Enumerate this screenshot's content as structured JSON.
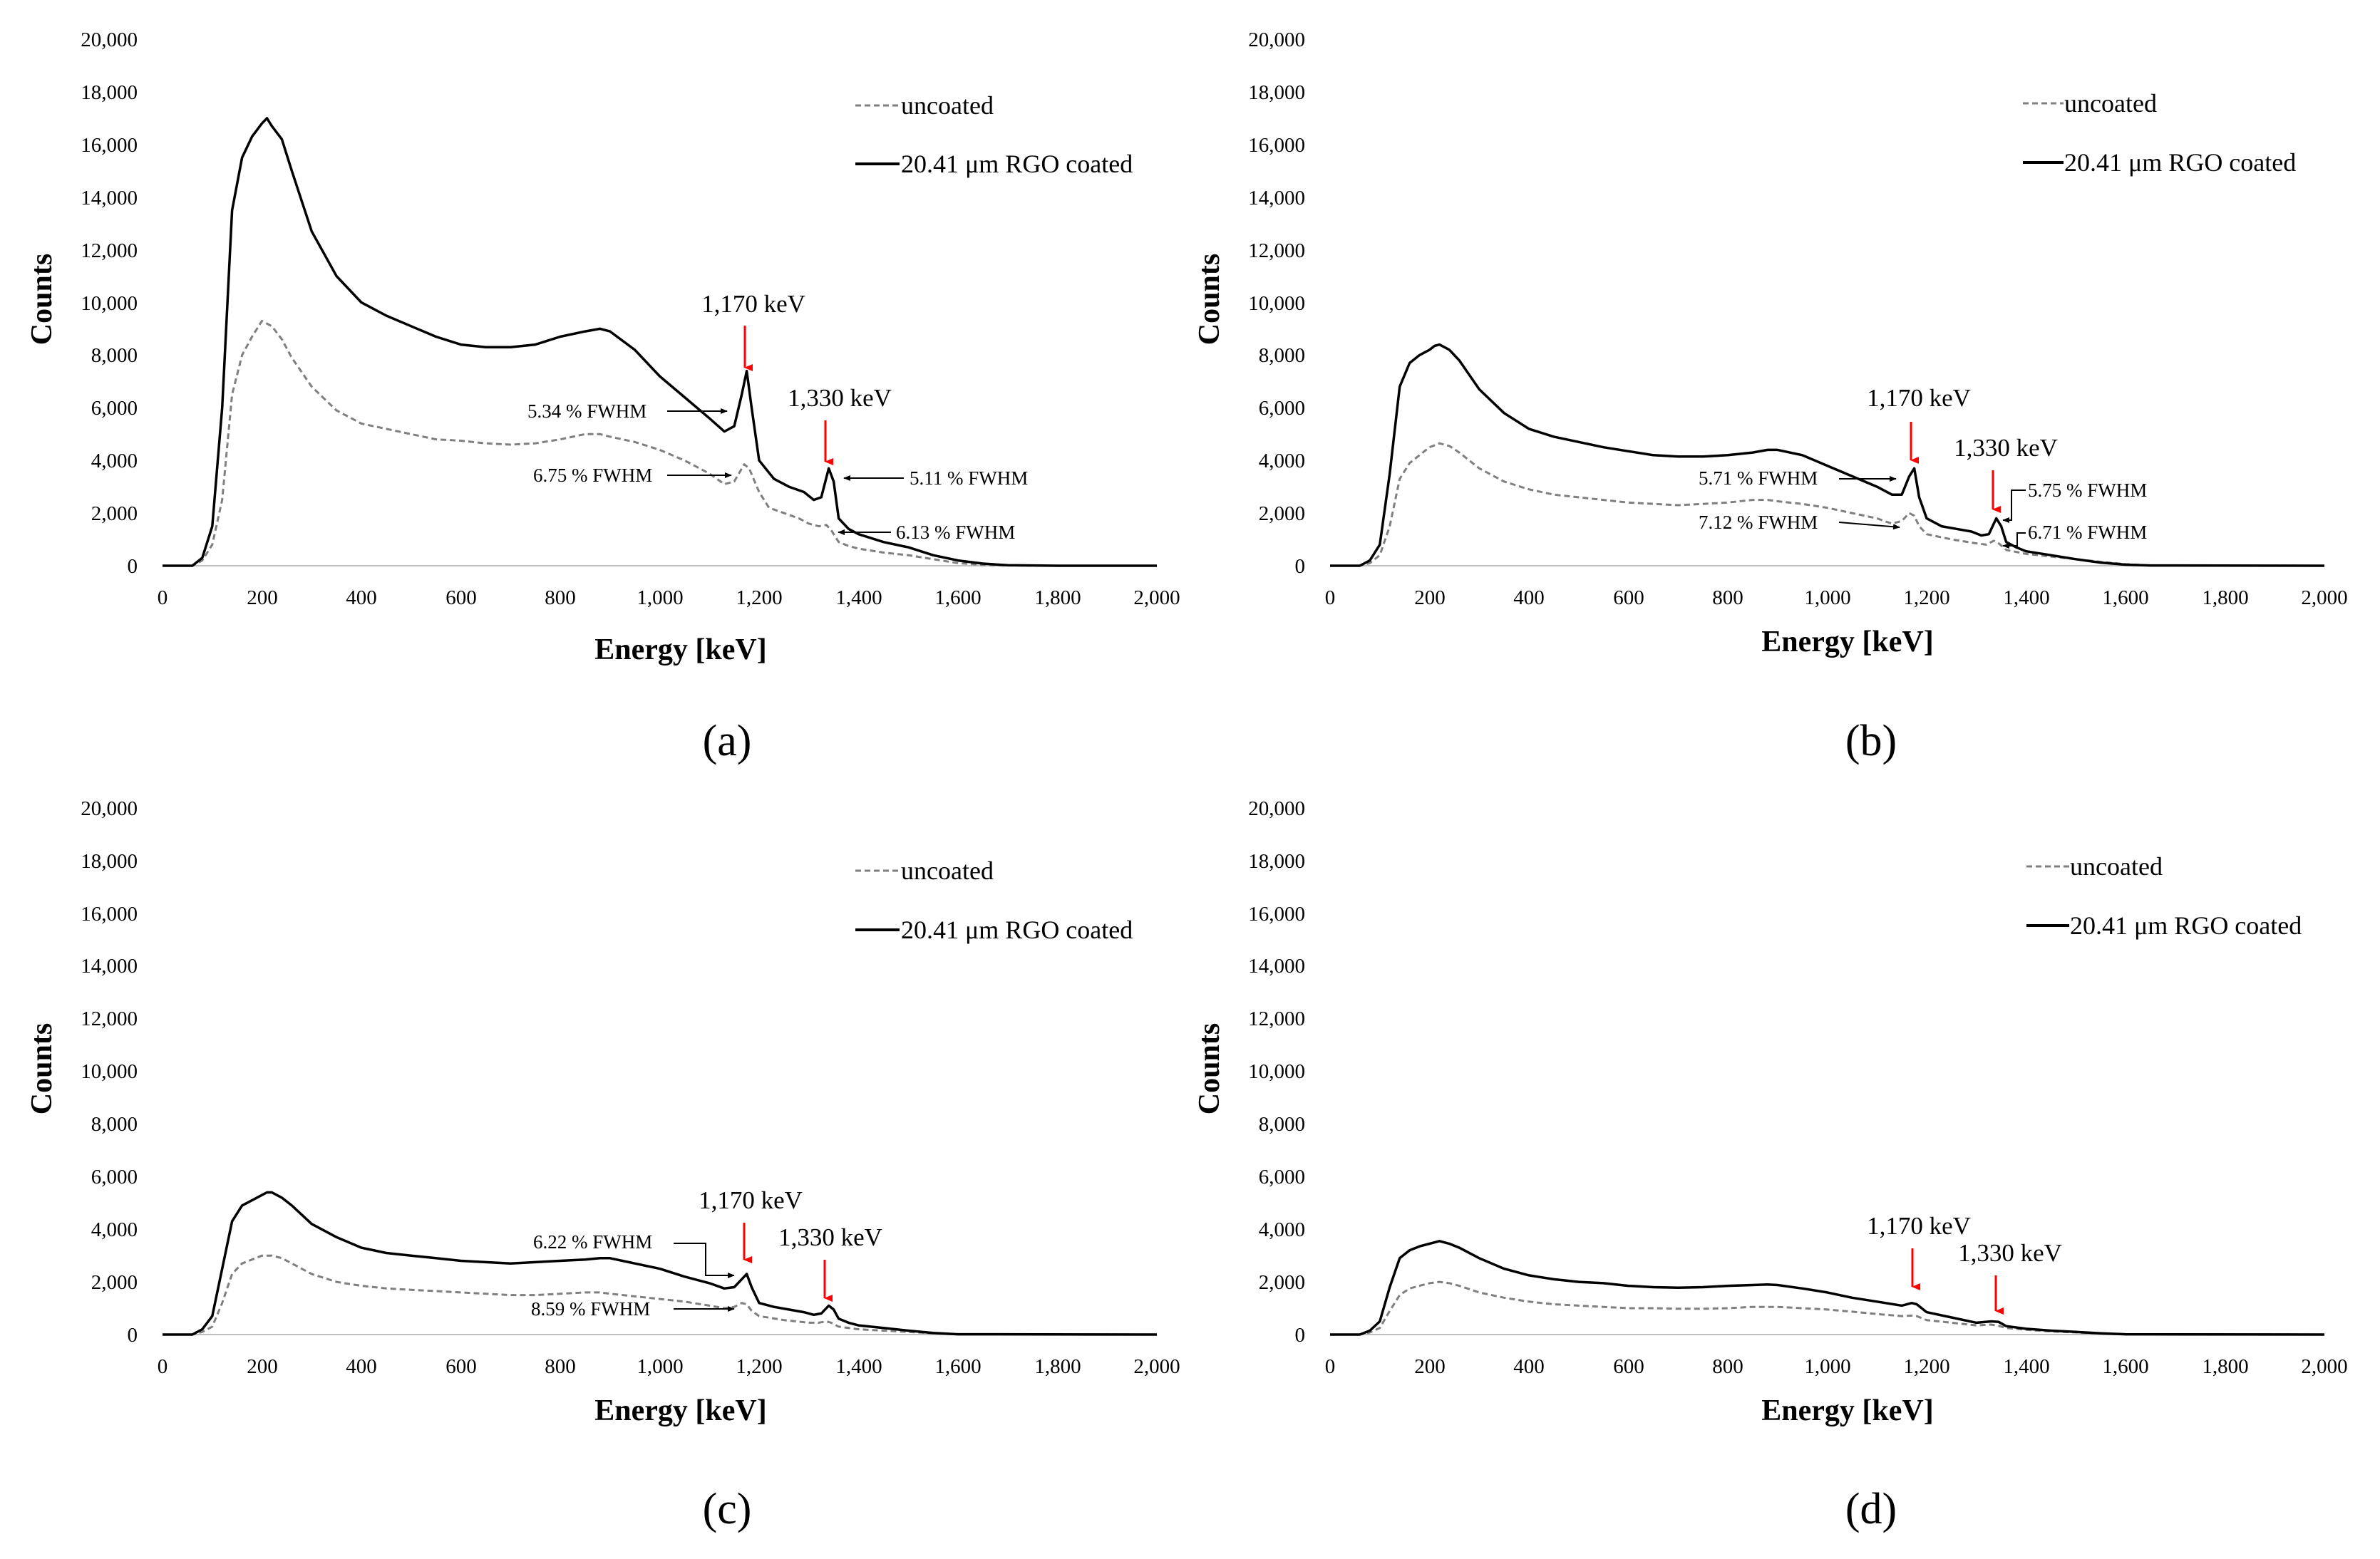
{
  "figure": {
    "panel_labels": [
      "(a)",
      "(b)",
      "(c)",
      "(d)"
    ]
  },
  "chart_data": [
    {
      "type": "line",
      "panel": "a",
      "xlabel": "Energy [keV]",
      "ylabel": "Counts",
      "xlim": [
        0,
        2000
      ],
      "ylim": [
        0,
        20000
      ],
      "xticks": [
        "0",
        "200",
        "400",
        "600",
        "800",
        "1,000",
        "1,200",
        "1,400",
        "1,600",
        "1,800",
        "2,000"
      ],
      "yticks": [
        "0",
        "2,000",
        "4,000",
        "6,000",
        "8,000",
        "10,000",
        "12,000",
        "14,000",
        "16,000",
        "18,000",
        "20,000"
      ],
      "legend": [
        "uncoated",
        "20.41 μm RGO coated"
      ],
      "series": [
        {
          "name": "uncoated",
          "style": "dashed",
          "color": "#7f7f7f",
          "x": [
            0,
            60,
            80,
            100,
            120,
            140,
            160,
            180,
            200,
            220,
            240,
            260,
            300,
            350,
            400,
            450,
            500,
            550,
            600,
            650,
            700,
            750,
            800,
            850,
            880,
            900,
            950,
            1000,
            1050,
            1100,
            1130,
            1150,
            1170,
            1180,
            1200,
            1220,
            1250,
            1280,
            1300,
            1320,
            1335,
            1345,
            1360,
            1380,
            1400,
            1450,
            1500,
            1550,
            1600,
            1650,
            1700,
            1800,
            2000
          ],
          "y": [
            0,
            0,
            200,
            800,
            2500,
            6500,
            8000,
            8700,
            9300,
            9100,
            8600,
            7900,
            6800,
            5900,
            5400,
            5200,
            5000,
            4800,
            4750,
            4650,
            4600,
            4650,
            4800,
            5000,
            5000,
            4900,
            4700,
            4400,
            4000,
            3500,
            3100,
            3200,
            3850,
            3700,
            2800,
            2200,
            2000,
            1800,
            1600,
            1500,
            1550,
            1350,
            900,
            750,
            650,
            500,
            400,
            250,
            100,
            30,
            10,
            0,
            0
          ]
        },
        {
          "name": "20.41 μm RGO coated",
          "style": "solid",
          "color": "#000000",
          "x": [
            0,
            60,
            80,
            100,
            120,
            140,
            160,
            180,
            200,
            210,
            220,
            240,
            260,
            300,
            350,
            400,
            450,
            500,
            550,
            600,
            650,
            700,
            750,
            800,
            850,
            880,
            900,
            950,
            1000,
            1050,
            1100,
            1130,
            1150,
            1165,
            1175,
            1185,
            1200,
            1230,
            1260,
            1290,
            1310,
            1325,
            1340,
            1350,
            1360,
            1380,
            1400,
            1450,
            1500,
            1550,
            1600,
            1650,
            1700,
            1800,
            2000
          ],
          "y": [
            0,
            0,
            300,
            1500,
            6000,
            13500,
            15500,
            16300,
            16800,
            17000,
            16700,
            16200,
            15000,
            12700,
            11000,
            10000,
            9500,
            9100,
            8700,
            8400,
            8300,
            8300,
            8400,
            8700,
            8900,
            9000,
            8900,
            8200,
            7200,
            6400,
            5600,
            5100,
            5300,
            6500,
            7400,
            6000,
            4000,
            3300,
            3000,
            2800,
            2500,
            2600,
            3700,
            3200,
            1800,
            1400,
            1200,
            900,
            700,
            400,
            200,
            80,
            20,
            0,
            0
          ]
        }
      ],
      "annotations": [
        {
          "text": "1,170 keV",
          "x": 1170
        },
        {
          "text": "1,330 keV",
          "x": 1330
        },
        {
          "text": "5.34 % FWHM"
        },
        {
          "text": "6.75 % FWHM"
        },
        {
          "text": "5.11 % FWHM"
        },
        {
          "text": "6.13 % FWHM"
        }
      ]
    },
    {
      "type": "line",
      "panel": "b",
      "xlabel": "Energy [keV]",
      "ylabel": "Counts",
      "xlim": [
        0,
        2000
      ],
      "ylim": [
        0,
        20000
      ],
      "xticks": [
        "0",
        "200",
        "400",
        "600",
        "800",
        "1,000",
        "1,200",
        "1,400",
        "1,600",
        "1,800",
        "2,000"
      ],
      "yticks": [
        "0",
        "2,000",
        "4,000",
        "6,000",
        "8,000",
        "10,000",
        "12,000",
        "14,000",
        "16,000",
        "18,000",
        "20,000"
      ],
      "legend": [
        "uncoated",
        "20.41 μm RGO coated"
      ],
      "series": [
        {
          "name": "uncoated",
          "style": "dashed",
          "color": "#7f7f7f",
          "x": [
            0,
            60,
            80,
            100,
            120,
            140,
            160,
            180,
            200,
            220,
            240,
            260,
            300,
            350,
            400,
            450,
            500,
            550,
            600,
            650,
            700,
            750,
            800,
            850,
            880,
            900,
            950,
            1000,
            1050,
            1100,
            1130,
            1150,
            1165,
            1175,
            1185,
            1200,
            1250,
            1300,
            1320,
            1335,
            1345,
            1360,
            1400,
            1450,
            1500,
            1550,
            1600,
            1650,
            2000
          ],
          "y": [
            0,
            0,
            100,
            400,
            1500,
            3300,
            3900,
            4200,
            4500,
            4650,
            4550,
            4300,
            3700,
            3200,
            2900,
            2700,
            2600,
            2500,
            2400,
            2350,
            2300,
            2350,
            2400,
            2500,
            2500,
            2450,
            2350,
            2200,
            2000,
            1800,
            1600,
            1700,
            2000,
            1900,
            1500,
            1200,
            1000,
            850,
            800,
            950,
            850,
            600,
            450,
            350,
            250,
            150,
            60,
            10,
            0
          ]
        },
        {
          "name": "20.41 μm RGO coated",
          "style": "solid",
          "color": "#000000",
          "x": [
            0,
            60,
            80,
            100,
            120,
            140,
            160,
            180,
            200,
            210,
            220,
            240,
            260,
            300,
            350,
            400,
            450,
            500,
            550,
            600,
            650,
            700,
            750,
            800,
            850,
            880,
            900,
            950,
            1000,
            1050,
            1100,
            1130,
            1150,
            1165,
            1175,
            1185,
            1200,
            1230,
            1260,
            1290,
            1310,
            1325,
            1340,
            1350,
            1360,
            1380,
            1400,
            1450,
            1500,
            1550,
            1600,
            1650,
            2000
          ],
          "y": [
            0,
            0,
            200,
            800,
            3500,
            6800,
            7700,
            8000,
            8200,
            8350,
            8400,
            8200,
            7800,
            6700,
            5800,
            5200,
            4900,
            4700,
            4500,
            4350,
            4200,
            4150,
            4150,
            4200,
            4300,
            4400,
            4400,
            4200,
            3800,
            3400,
            3000,
            2700,
            2700,
            3400,
            3700,
            2600,
            1800,
            1500,
            1400,
            1300,
            1150,
            1200,
            1800,
            1500,
            900,
            700,
            550,
            400,
            250,
            120,
            40,
            10,
            0
          ]
        }
      ],
      "annotations": [
        {
          "text": "1,170 keV",
          "x": 1170
        },
        {
          "text": "1,330 keV",
          "x": 1330
        },
        {
          "text": "5.71 % FWHM"
        },
        {
          "text": "7.12 % FWHM"
        },
        {
          "text": "5.75 % FWHM"
        },
        {
          "text": "6.71 % FWHM"
        }
      ]
    },
    {
      "type": "line",
      "panel": "c",
      "xlabel": "Energy [keV]",
      "ylabel": "Counts",
      "xlim": [
        0,
        2000
      ],
      "ylim": [
        0,
        20000
      ],
      "xticks": [
        "0",
        "200",
        "400",
        "600",
        "800",
        "1,000",
        "1,200",
        "1,400",
        "1,600",
        "1,800",
        "2,000"
      ],
      "yticks": [
        "0",
        "2,000",
        "4,000",
        "6,000",
        "8,000",
        "10,000",
        "12,000",
        "14,000",
        "16,000",
        "18,000",
        "20,000"
      ],
      "legend": [
        "uncoated",
        "20.41 μm RGO coated"
      ],
      "series": [
        {
          "name": "uncoated",
          "style": "dashed",
          "color": "#7f7f7f",
          "x": [
            0,
            60,
            80,
            100,
            120,
            140,
            160,
            180,
            200,
            220,
            240,
            260,
            300,
            350,
            400,
            450,
            500,
            550,
            600,
            650,
            700,
            750,
            800,
            850,
            880,
            900,
            950,
            1000,
            1050,
            1100,
            1130,
            1150,
            1165,
            1175,
            1185,
            1200,
            1250,
            1300,
            1320,
            1335,
            1345,
            1360,
            1400,
            1450,
            1500,
            1550,
            1600,
            2000
          ],
          "y": [
            0,
            0,
            100,
            300,
            1200,
            2300,
            2700,
            2850,
            3000,
            3000,
            2900,
            2700,
            2300,
            2000,
            1850,
            1750,
            1700,
            1650,
            1600,
            1550,
            1500,
            1500,
            1550,
            1600,
            1600,
            1550,
            1450,
            1350,
            1250,
            1100,
            1000,
            1050,
            1200,
            1150,
            900,
            700,
            550,
            450,
            450,
            500,
            450,
            300,
            200,
            150,
            100,
            50,
            10,
            0
          ]
        },
        {
          "name": "20.41 μm RGO coated",
          "style": "solid",
          "color": "#000000",
          "x": [
            0,
            60,
            80,
            100,
            120,
            140,
            160,
            180,
            200,
            210,
            220,
            240,
            260,
            300,
            350,
            400,
            450,
            500,
            550,
            600,
            650,
            700,
            750,
            800,
            850,
            880,
            900,
            950,
            1000,
            1050,
            1100,
            1130,
            1150,
            1165,
            1175,
            1185,
            1200,
            1230,
            1260,
            1290,
            1310,
            1325,
            1340,
            1350,
            1360,
            1380,
            1400,
            1450,
            1500,
            1550,
            1600,
            2000
          ],
          "y": [
            0,
            0,
            200,
            700,
            2500,
            4300,
            4900,
            5100,
            5300,
            5400,
            5400,
            5200,
            4900,
            4200,
            3700,
            3300,
            3100,
            3000,
            2900,
            2800,
            2750,
            2700,
            2750,
            2800,
            2850,
            2900,
            2900,
            2700,
            2500,
            2200,
            1950,
            1750,
            1800,
            2100,
            2300,
            1800,
            1200,
            1050,
            950,
            850,
            750,
            800,
            1100,
            950,
            600,
            450,
            350,
            250,
            150,
            60,
            10,
            0
          ]
        }
      ],
      "annotations": [
        {
          "text": "1,170 keV",
          "x": 1170
        },
        {
          "text": "1,330 keV",
          "x": 1330
        },
        {
          "text": "6.22 % FWHM"
        },
        {
          "text": "8.59 % FWHM"
        }
      ]
    },
    {
      "type": "line",
      "panel": "d",
      "xlabel": "Energy [keV]",
      "ylabel": "Counts",
      "xlim": [
        0,
        2000
      ],
      "ylim": [
        0,
        20000
      ],
      "xticks": [
        "0",
        "200",
        "400",
        "600",
        "800",
        "1,000",
        "1,200",
        "1,400",
        "1,600",
        "1,800",
        "2,000"
      ],
      "yticks": [
        "0",
        "2,000",
        "4,000",
        "6,000",
        "8,000",
        "10,000",
        "12,000",
        "14,000",
        "16,000",
        "18,000",
        "20,000"
      ],
      "legend": [
        "uncoated",
        "20.41 μm RGO coated"
      ],
      "series": [
        {
          "name": "uncoated",
          "style": "dashed",
          "color": "#7f7f7f",
          "x": [
            0,
            60,
            80,
            100,
            120,
            140,
            160,
            180,
            200,
            220,
            240,
            260,
            300,
            350,
            400,
            450,
            500,
            550,
            600,
            650,
            700,
            750,
            800,
            850,
            880,
            900,
            950,
            1000,
            1050,
            1100,
            1150,
            1170,
            1180,
            1200,
            1250,
            1300,
            1330,
            1345,
            1360,
            1400,
            1450,
            1500,
            1550,
            1600,
            2000
          ],
          "y": [
            0,
            0,
            80,
            250,
            900,
            1500,
            1750,
            1850,
            1950,
            2000,
            1950,
            1850,
            1600,
            1400,
            1250,
            1150,
            1100,
            1050,
            1000,
            1000,
            980,
            980,
            1000,
            1050,
            1050,
            1050,
            1000,
            950,
            870,
            780,
            700,
            720,
            700,
            550,
            450,
            350,
            380,
            330,
            250,
            180,
            120,
            80,
            40,
            10,
            0
          ]
        },
        {
          "name": "20.41 μm RGO coated",
          "style": "solid",
          "color": "#000000",
          "x": [
            0,
            60,
            80,
            100,
            120,
            140,
            160,
            180,
            200,
            210,
            220,
            240,
            260,
            300,
            350,
            400,
            450,
            500,
            550,
            600,
            650,
            700,
            750,
            800,
            850,
            880,
            900,
            950,
            1000,
            1050,
            1100,
            1150,
            1170,
            1180,
            1200,
            1250,
            1300,
            1330,
            1345,
            1360,
            1400,
            1450,
            1500,
            1550,
            1600,
            2000
          ],
          "y": [
            0,
            0,
            150,
            500,
            1800,
            2900,
            3200,
            3350,
            3450,
            3500,
            3550,
            3450,
            3300,
            2900,
            2500,
            2250,
            2100,
            2000,
            1950,
            1850,
            1800,
            1780,
            1800,
            1850,
            1880,
            1900,
            1880,
            1750,
            1600,
            1400,
            1250,
            1100,
            1200,
            1150,
            850,
            650,
            450,
            500,
            480,
            320,
            220,
            150,
            100,
            50,
            10,
            0
          ]
        }
      ],
      "annotations": [
        {
          "text": "1,170 keV",
          "x": 1170
        },
        {
          "text": "1,330 keV",
          "x": 1330
        }
      ]
    }
  ]
}
